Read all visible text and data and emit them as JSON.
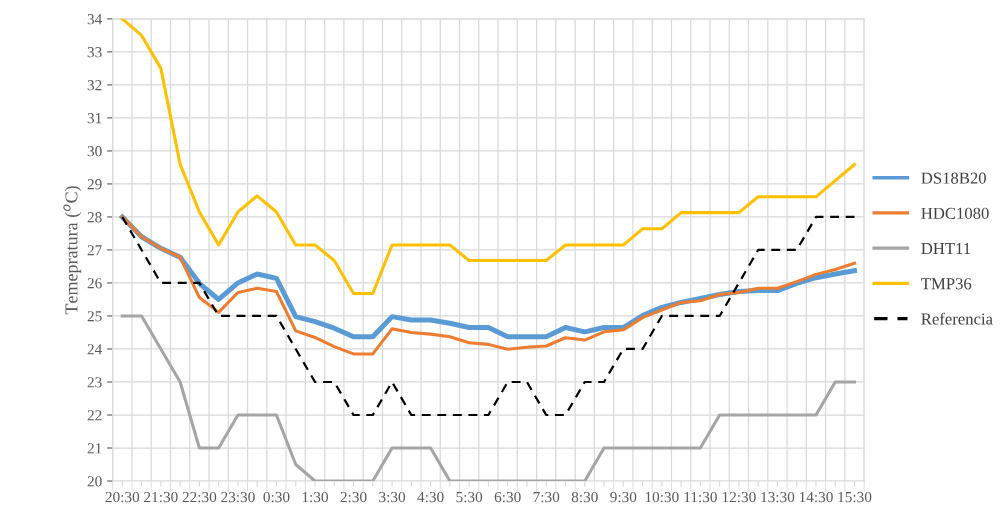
{
  "chart_data": {
    "type": "line",
    "ylabel": "Temepratura ($^{o}$C)",
    "categories": [
      "20:30",
      null,
      "21:30",
      null,
      "22:30",
      null,
      "23:30",
      null,
      "0:30",
      null,
      "1:30",
      null,
      "2:30",
      null,
      "3:30",
      null,
      "4:30",
      null,
      "5:30",
      null,
      "6:30",
      null,
      "7:30",
      null,
      "8:30",
      null,
      "9:30",
      null,
      "10:30",
      null,
      "11:30",
      null,
      "12:30",
      null,
      "13:30",
      null,
      "14:30",
      null,
      "15:30"
    ],
    "ylim": [
      20,
      34
    ],
    "yticks": [
      20,
      21,
      22,
      23,
      24,
      25,
      26,
      27,
      28,
      29,
      30,
      31,
      32,
      33,
      34
    ],
    "grid": true,
    "legend": "right",
    "series": [
      {
        "name": "DS18B20",
        "color": "#5b9bd5",
        "values": [
          28.0,
          27.4,
          27.05,
          26.78,
          25.99,
          25.5,
          26.0,
          26.27,
          26.14,
          24.98,
          24.83,
          24.63,
          24.37,
          24.37,
          24.98,
          24.88,
          24.88,
          24.78,
          24.65,
          24.65,
          24.37,
          24.37,
          24.37,
          24.65,
          24.52,
          24.65,
          24.65,
          25.01,
          25.26,
          25.41,
          25.53,
          25.65,
          25.74,
          25.77,
          25.77,
          25.99,
          26.16,
          26.27,
          26.37
        ]
      },
      {
        "name": "HDC1080",
        "color": "#ed7d31",
        "values": [
          28.0,
          27.4,
          27.05,
          26.78,
          25.56,
          25.11,
          25.71,
          25.84,
          25.74,
          24.55,
          24.35,
          24.07,
          23.85,
          23.85,
          24.61,
          24.5,
          24.45,
          24.37,
          24.19,
          24.14,
          23.99,
          24.05,
          24.09,
          24.34,
          24.27,
          24.52,
          24.58,
          24.95,
          25.18,
          25.41,
          25.46,
          25.65,
          25.71,
          25.84,
          25.84,
          26.04,
          26.26,
          26.41,
          26.6
        ]
      },
      {
        "name": "DHT11",
        "color": "#a5a5a5",
        "values": [
          25,
          25,
          24,
          23,
          21,
          21,
          22,
          22,
          22,
          20.5,
          20,
          20,
          20,
          20,
          21,
          21,
          21,
          20,
          20,
          20,
          20,
          20,
          20,
          20,
          20,
          21,
          21,
          21,
          21,
          21,
          21,
          22,
          22,
          22,
          22,
          22,
          22,
          23,
          23
        ]
      },
      {
        "name": "TMP36",
        "color": "#ffc000",
        "values": [
          34.0,
          33.5,
          32.5,
          29.6,
          28.15,
          27.15,
          28.15,
          28.64,
          28.15,
          27.15,
          27.15,
          26.68,
          25.68,
          25.68,
          27.15,
          27.15,
          27.15,
          27.15,
          26.68,
          26.68,
          26.68,
          26.68,
          26.68,
          27.15,
          27.15,
          27.15,
          27.15,
          27.64,
          27.64,
          28.13,
          28.13,
          28.13,
          28.13,
          28.61,
          28.61,
          28.61,
          28.61,
          29.1,
          29.59
        ]
      },
      {
        "name": "Referencia",
        "color": "#000000",
        "line_style": "dashed",
        "values": [
          28,
          27,
          26,
          26,
          26,
          25,
          25,
          25,
          25,
          24,
          23,
          23,
          22,
          22,
          23,
          22,
          22,
          22,
          22,
          22,
          23,
          23,
          22,
          22,
          23,
          23,
          24,
          24,
          25,
          25,
          25,
          25,
          26,
          27,
          27,
          27,
          28,
          28,
          28
        ]
      }
    ]
  }
}
